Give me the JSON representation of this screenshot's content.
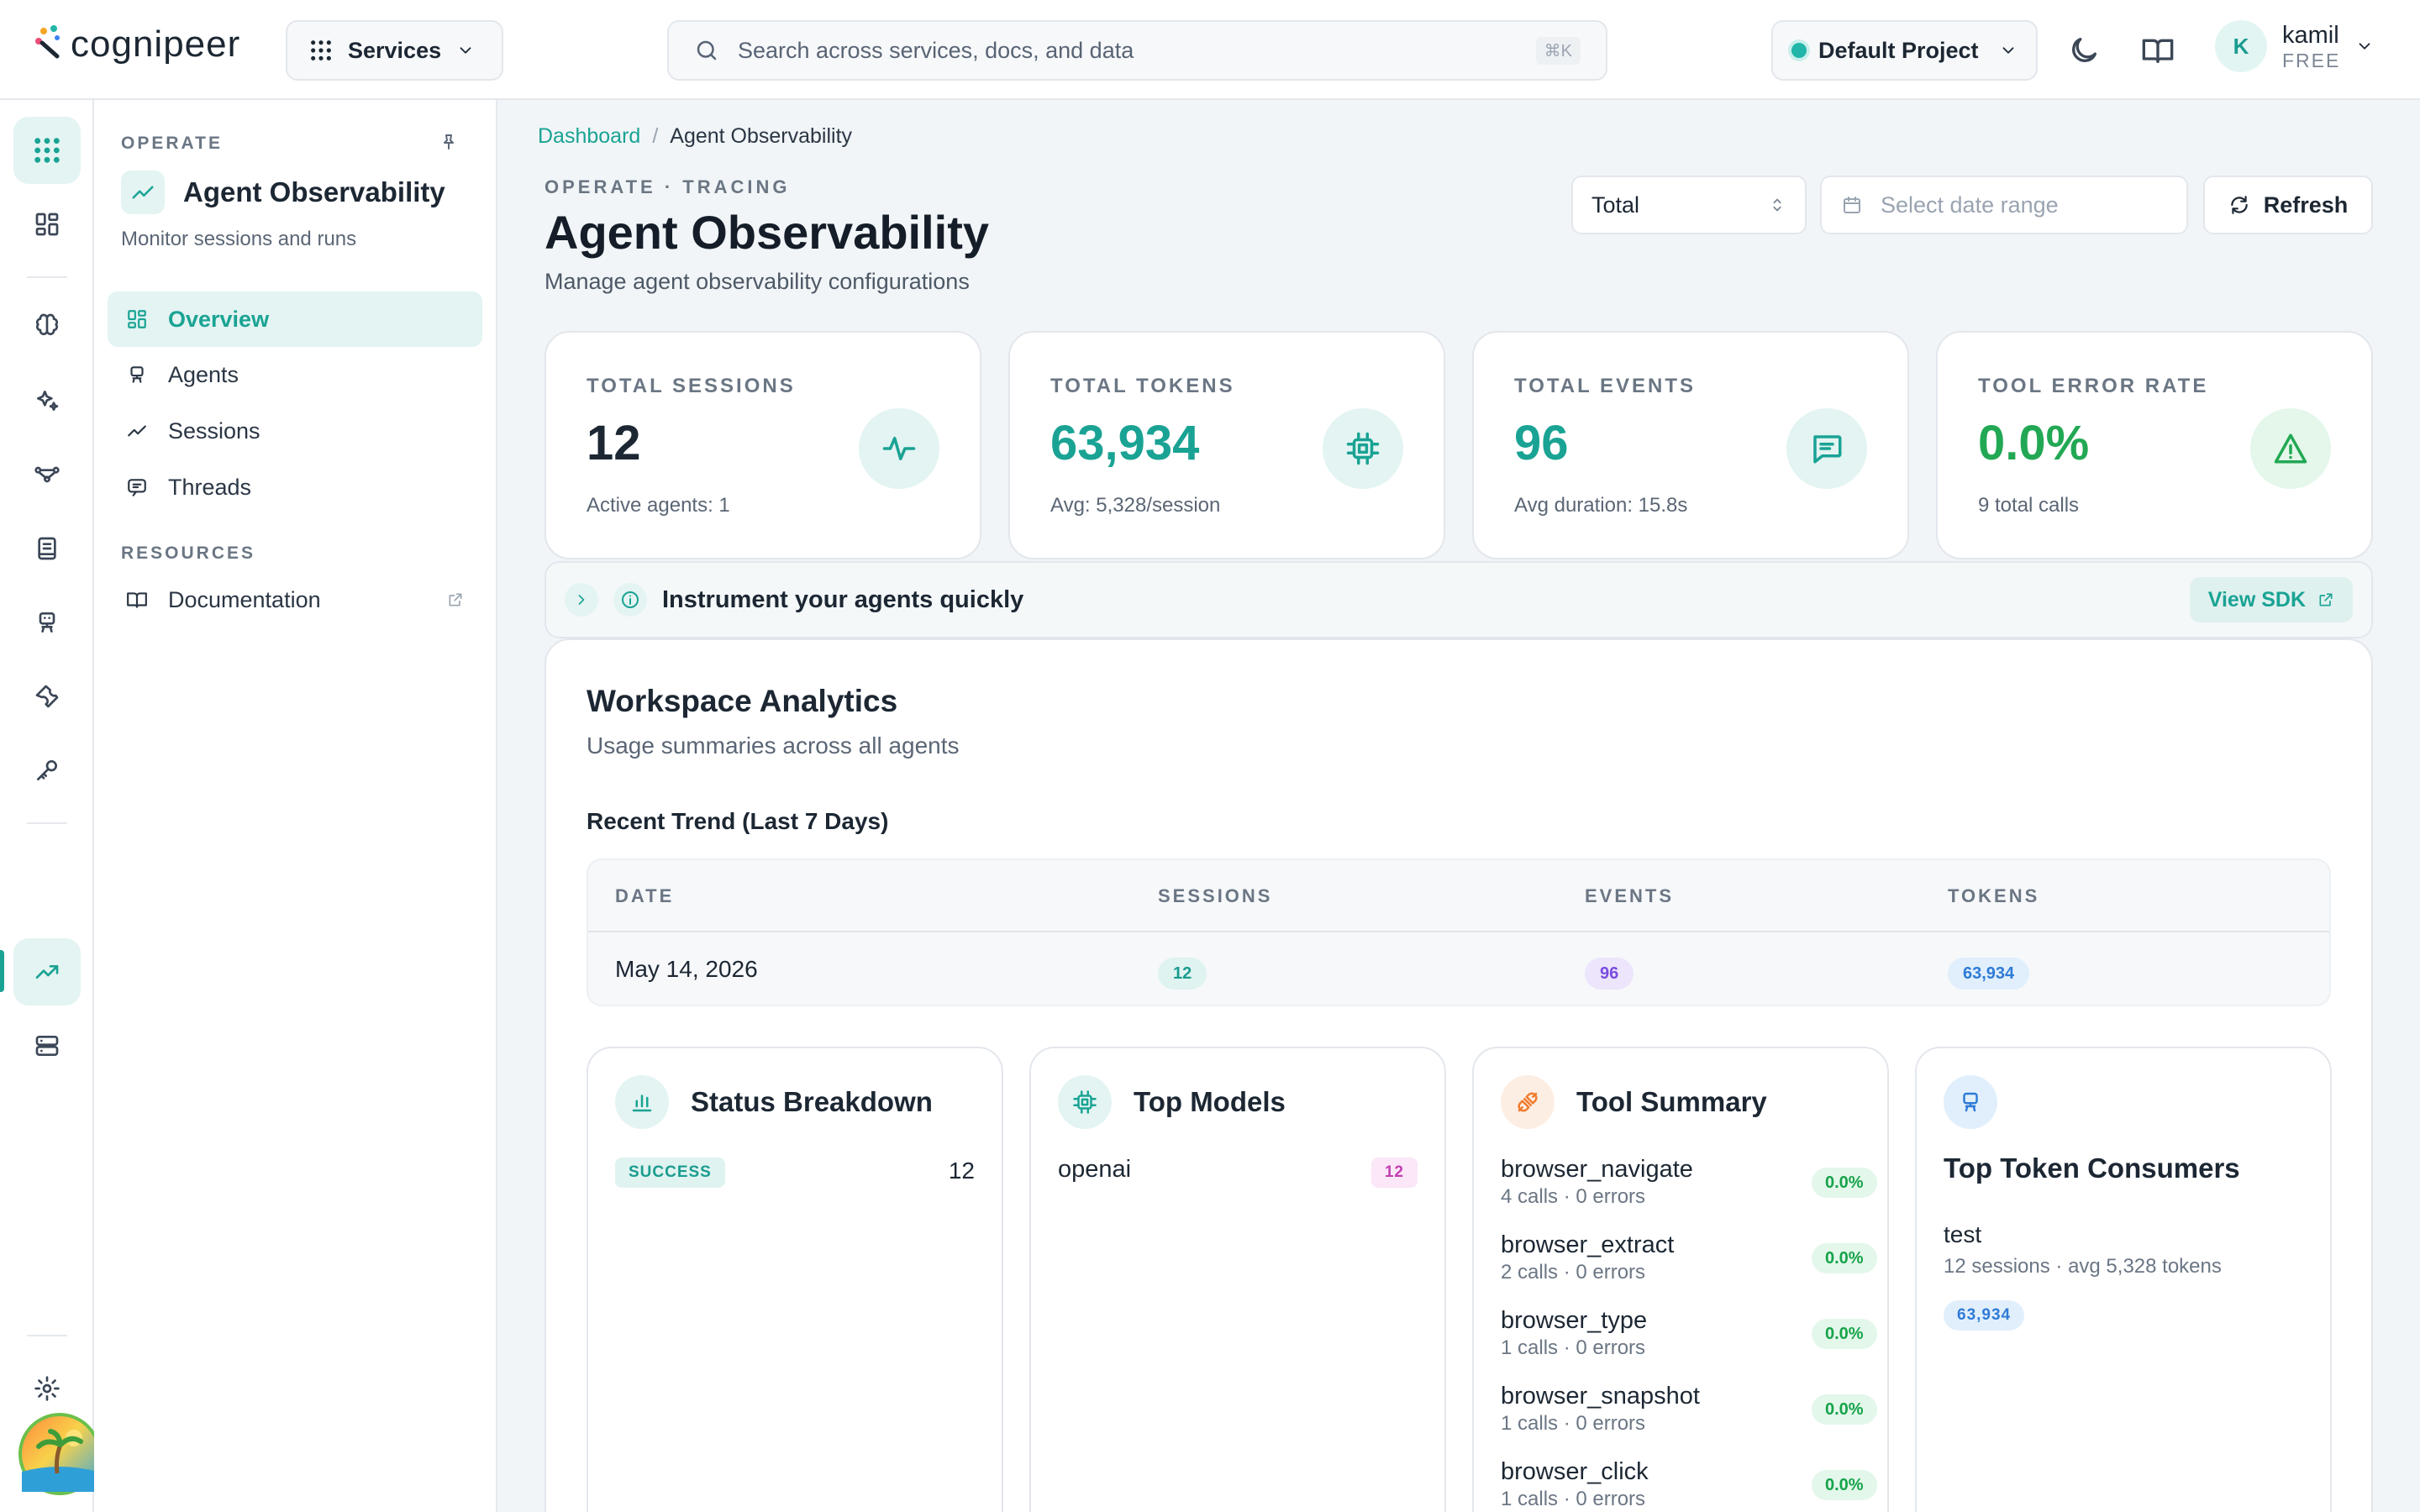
{
  "header": {
    "brand": "cognipeer",
    "services_label": "Services",
    "search_placeholder": "Search across services, docs, and data",
    "search_shortcut": "⌘K",
    "project_label": "Default Project",
    "user": {
      "initial": "K",
      "name": "kamil",
      "plan": "FREE"
    }
  },
  "sidebar": {
    "section_label": "OPERATE",
    "title": "Agent Observability",
    "subtitle": "Monitor sessions and runs",
    "items": [
      {
        "label": "Overview",
        "icon": "overview-icon",
        "active": true
      },
      {
        "label": "Agents",
        "icon": "robot-icon"
      },
      {
        "label": "Sessions",
        "icon": "trend-icon"
      },
      {
        "label": "Threads",
        "icon": "chat-icon"
      }
    ],
    "resources_label": "RESOURCES",
    "resources": [
      {
        "label": "Documentation",
        "icon": "book-icon"
      }
    ]
  },
  "breadcrumb": {
    "root": "Dashboard",
    "separator": "/",
    "current": "Agent Observability"
  },
  "page": {
    "eyebrow": "OPERATE · TRACING",
    "title": "Agent Observability",
    "subtitle": "Manage agent observability configurations"
  },
  "controls": {
    "scope_value": "Total",
    "date_placeholder": "Select date range",
    "refresh_label": "Refresh"
  },
  "stats": [
    {
      "label": "TOTAL SESSIONS",
      "value": "12",
      "sub": "Active agents: 1",
      "icon": "pulse-icon",
      "color": "#1c2733"
    },
    {
      "label": "TOTAL TOKENS",
      "value": "63,934",
      "sub": "Avg: 5,328/session",
      "icon": "cpu-icon",
      "color": "#1aa394"
    },
    {
      "label": "TOTAL EVENTS",
      "value": "96",
      "sub": "Avg duration: 15.8s",
      "icon": "message-icon",
      "color": "#1aa394"
    },
    {
      "label": "TOOL ERROR RATE",
      "value": "0.0%",
      "sub": "9 total calls",
      "icon": "warning-icon",
      "color": "#22a854"
    }
  ],
  "banner": {
    "text": "Instrument your agents quickly",
    "action": "View SDK"
  },
  "analytics": {
    "title": "Workspace Analytics",
    "subtitle": "Usage summaries across all agents",
    "trend_title": "Recent Trend (Last 7 Days)",
    "columns": [
      "DATE",
      "SESSIONS",
      "EVENTS",
      "TOKENS"
    ],
    "rows": [
      {
        "date": "May 14, 2026",
        "sessions": "12",
        "events": "96",
        "tokens": "63,934"
      }
    ]
  },
  "status_breakdown": {
    "title": "Status Breakdown",
    "items": [
      {
        "status": "SUCCESS",
        "count": "12"
      }
    ]
  },
  "top_models": {
    "title": "Top Models",
    "items": [
      {
        "name": "openai",
        "count": "12"
      }
    ]
  },
  "tool_summary": {
    "title": "Tool Summary",
    "items": [
      {
        "name": "browser_navigate",
        "meta": "4 calls · 0 errors",
        "rate": "0.0%"
      },
      {
        "name": "browser_extract",
        "meta": "2 calls · 0 errors",
        "rate": "0.0%"
      },
      {
        "name": "browser_type",
        "meta": "1 calls · 0 errors",
        "rate": "0.0%"
      },
      {
        "name": "browser_snapshot",
        "meta": "1 calls · 0 errors",
        "rate": "0.0%"
      },
      {
        "name": "browser_click",
        "meta": "1 calls · 0 errors",
        "rate": "0.0%"
      }
    ]
  },
  "top_consumers": {
    "title": "Top Token Consumers",
    "items": [
      {
        "name": "test",
        "meta": "12 sessions · avg 5,328 tokens",
        "tokens": "63,934"
      }
    ]
  }
}
